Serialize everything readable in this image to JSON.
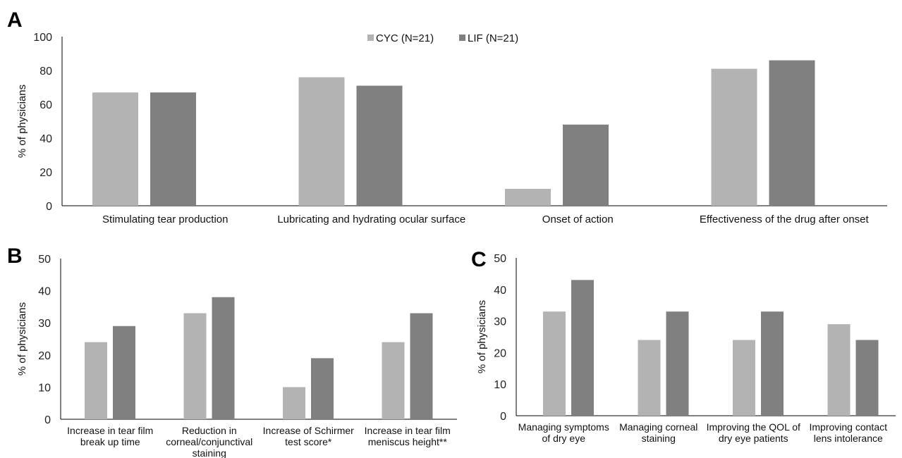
{
  "colors": {
    "CYC": "#b3b3b3",
    "LIF": "#808080"
  },
  "legend": [
    {
      "name": "CYC (N=21)",
      "color": "#b3b3b3"
    },
    {
      "name": "LIF (N=21)",
      "color": "#808080"
    }
  ],
  "chart_data": [
    {
      "panel": "A",
      "type": "bar",
      "ylabel": "% of physicians",
      "ylim": [
        0,
        100
      ],
      "yticks": [
        0,
        20,
        40,
        60,
        80,
        100
      ],
      "categories": [
        [
          "Stimulating tear production"
        ],
        [
          "Lubricating and hydrating ocular surface"
        ],
        [
          "Onset of action"
        ],
        [
          "Effectiveness of the drug after onset"
        ]
      ],
      "series": [
        {
          "name": "CYC (N=21)",
          "values": [
            67,
            76,
            10,
            81
          ]
        },
        {
          "name": "LIF (N=21)",
          "values": [
            67,
            71,
            48,
            86
          ]
        }
      ],
      "legend_position": "top-center"
    },
    {
      "panel": "B",
      "type": "bar",
      "ylabel": "% of physicians",
      "ylim": [
        0,
        50
      ],
      "yticks": [
        0,
        10,
        20,
        30,
        40,
        50
      ],
      "categories": [
        [
          "Increase in tear film",
          "break up time"
        ],
        [
          "Reduction in",
          "corneal/conjunctival",
          "staining"
        ],
        [
          "Increase of Schirmer",
          "test score*"
        ],
        [
          "Increase in tear film",
          "meniscus height**"
        ]
      ],
      "series": [
        {
          "name": "CYC (N=21)",
          "values": [
            24,
            33,
            10,
            24
          ]
        },
        {
          "name": "LIF (N=21)",
          "values": [
            29,
            38,
            19,
            33
          ]
        }
      ]
    },
    {
      "panel": "C",
      "type": "bar",
      "ylabel": "% of physicians",
      "ylim": [
        0,
        50
      ],
      "yticks": [
        0,
        10,
        20,
        30,
        40,
        50
      ],
      "categories": [
        [
          "Managing symptoms",
          "of dry eye"
        ],
        [
          "Managing corneal",
          "staining"
        ],
        [
          "Improving the QOL of",
          "dry eye patients"
        ],
        [
          "Improving contact",
          "lens intolerance"
        ]
      ],
      "series": [
        {
          "name": "CYC (N=21)",
          "values": [
            33,
            24,
            24,
            29
          ]
        },
        {
          "name": "LIF (N=21)",
          "values": [
            43,
            33,
            33,
            24
          ]
        }
      ]
    }
  ]
}
